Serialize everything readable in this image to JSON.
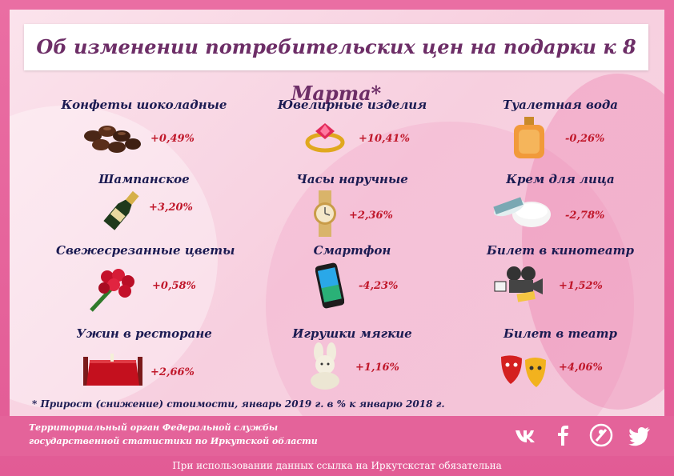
{
  "title": "Об изменении потребительских цен на подарки к 8 Марта*",
  "items": [
    {
      "label": "Конфеты шоколадные",
      "value": "+0,49%",
      "icon": "chocolates-icon"
    },
    {
      "label": "Ювелирные изделия",
      "value": "+10,41%",
      "icon": "ring-icon"
    },
    {
      "label": "Туалетная вода",
      "value": "-0,26%",
      "icon": "perfume-icon"
    },
    {
      "label": "Шампанское",
      "value": "+3,20%",
      "icon": "champagne-icon"
    },
    {
      "label": "Часы наручные",
      "value": "+2,36%",
      "icon": "watch-icon"
    },
    {
      "label": "Крем для лица",
      "value": "-2,78%",
      "icon": "cream-icon"
    },
    {
      "label": "Свежесрезанные цветы",
      "value": "+0,58%",
      "icon": "roses-icon"
    },
    {
      "label": "Смартфон",
      "value": "-4,23%",
      "icon": "smartphone-icon"
    },
    {
      "label": "Билет в кинотеатр",
      "value": "+1,52%",
      "icon": "cinema-icon"
    },
    {
      "label": "Ужин в ресторане",
      "value": "+2,66%",
      "icon": "dinner-table-icon"
    },
    {
      "label": "Игрушки мягкие",
      "value": "+1,16%",
      "icon": "plush-bunny-icon"
    },
    {
      "label": "Билет в театр",
      "value": "+4,06%",
      "icon": "theatre-masks-icon"
    }
  ],
  "footnote": "* Прирост (снижение) стоимости, январь 2019 г. в % к январю 2018 г.",
  "org": {
    "line1": "Территориальный орган Федеральной службы",
    "line2": "государственной статистики по Иркутской области"
  },
  "social": [
    "vk-icon",
    "facebook-icon",
    "ok-icon",
    "twitter-icon"
  ],
  "bottom_note": "При использовании данных ссылка на Иркутскстат  обязательна"
}
